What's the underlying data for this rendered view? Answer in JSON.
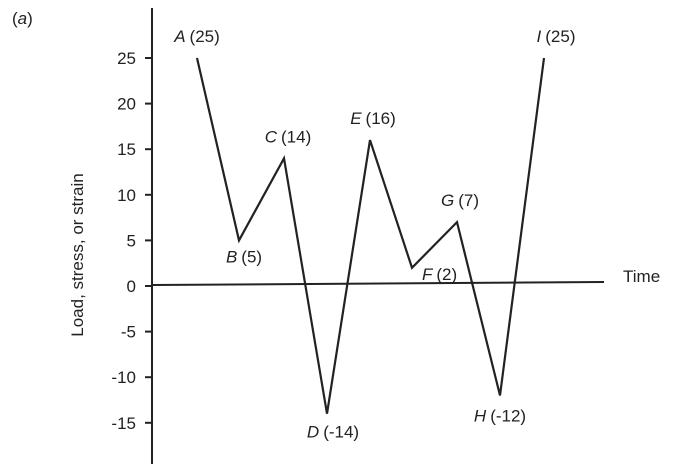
{
  "chart_data": {
    "type": "line",
    "panel_label": "(a)",
    "panel_letter": "a",
    "xlabel": "Time",
    "ylabel": "Load, stress, or strain",
    "ylim": [
      -17,
      28
    ],
    "yticks": [
      25,
      20,
      15,
      10,
      5,
      0,
      -5,
      -10,
      -15
    ],
    "grid": false,
    "series": [
      {
        "points": [
          {
            "letter": "A",
            "value": 25,
            "text": "(25)"
          },
          {
            "letter": "B",
            "value": 5,
            "text": "(5)"
          },
          {
            "letter": "C",
            "value": 14,
            "text": "(14)"
          },
          {
            "letter": "D",
            "value": -14,
            "text": "(-14)"
          },
          {
            "letter": "E",
            "value": 16,
            "text": "(16)"
          },
          {
            "letter": "F",
            "value": 2,
            "text": "(2)"
          },
          {
            "letter": "G",
            "value": 7,
            "text": "(7)"
          },
          {
            "letter": "H",
            "value": -12,
            "text": "(-12)"
          },
          {
            "letter": "I",
            "value": 25,
            "text": "(25)"
          }
        ]
      }
    ]
  }
}
